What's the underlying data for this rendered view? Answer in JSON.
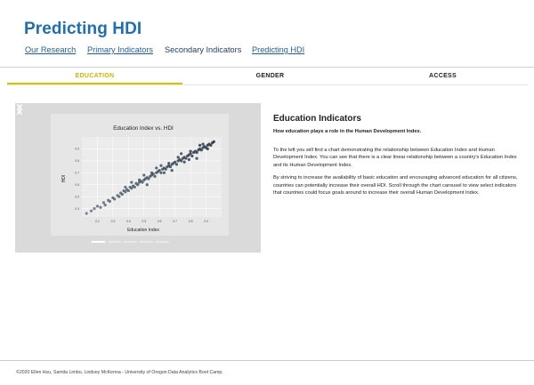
{
  "header": {
    "title": "Predicting HDI"
  },
  "nav": {
    "items": [
      {
        "label": "Our Research"
      },
      {
        "label": "Primary Indicators"
      },
      {
        "label": "Secondary Indicators"
      },
      {
        "label": "Predicting HDI"
      }
    ]
  },
  "tabs": [
    {
      "label": "EDUCATION",
      "active": true
    },
    {
      "label": "GENDER",
      "active": false
    },
    {
      "label": "ACCESS",
      "active": false
    }
  ],
  "carousel": {
    "slide_count": 5,
    "active_slide": 0
  },
  "chart_data": {
    "type": "scatter",
    "title": "Education Index vs. HDI",
    "xlabel": "Education Index",
    "ylabel": "HDI",
    "xlim": [
      0.1,
      1.0
    ],
    "ylim": [
      0.33,
      1.0
    ],
    "xticks": [
      "0.2",
      "0.3",
      "0.4",
      "0.5",
      "0.6",
      "0.7",
      "0.8",
      "0.9"
    ],
    "yticks": [
      "0.4",
      "0.5",
      "0.6",
      "0.7",
      "0.8",
      "0.9"
    ],
    "grid": true,
    "series": [
      {
        "x": [
          0.13,
          0.16,
          0.18,
          0.2,
          0.22,
          0.24,
          0.25,
          0.27,
          0.28,
          0.3,
          0.31,
          0.33,
          0.34,
          0.35,
          0.36,
          0.37,
          0.38,
          0.39,
          0.4,
          0.41,
          0.42,
          0.43,
          0.44,
          0.45,
          0.46,
          0.47,
          0.48,
          0.49,
          0.5,
          0.51,
          0.52,
          0.53,
          0.54,
          0.55,
          0.56,
          0.57,
          0.58,
          0.59,
          0.6,
          0.61,
          0.62,
          0.63,
          0.64,
          0.65,
          0.66,
          0.67,
          0.68,
          0.69,
          0.7,
          0.71,
          0.72,
          0.73,
          0.74,
          0.75,
          0.76,
          0.77,
          0.78,
          0.79,
          0.8,
          0.81,
          0.82,
          0.83,
          0.84,
          0.85,
          0.86,
          0.87,
          0.88,
          0.89,
          0.9,
          0.91,
          0.92,
          0.93,
          0.94,
          0.95,
          0.47,
          0.52,
          0.58,
          0.63,
          0.68,
          0.72,
          0.76,
          0.8,
          0.84,
          0.88,
          0.55,
          0.61,
          0.66,
          0.74,
          0.79,
          0.86,
          0.91,
          0.42,
          0.38,
          0.5
        ],
        "y": [
          0.36,
          0.38,
          0.4,
          0.42,
          0.41,
          0.45,
          0.43,
          0.47,
          0.46,
          0.49,
          0.48,
          0.51,
          0.5,
          0.53,
          0.52,
          0.55,
          0.54,
          0.56,
          0.55,
          0.58,
          0.57,
          0.59,
          0.58,
          0.61,
          0.6,
          0.62,
          0.63,
          0.62,
          0.64,
          0.65,
          0.66,
          0.65,
          0.67,
          0.68,
          0.69,
          0.67,
          0.7,
          0.71,
          0.72,
          0.7,
          0.73,
          0.74,
          0.73,
          0.75,
          0.76,
          0.75,
          0.77,
          0.78,
          0.79,
          0.77,
          0.8,
          0.81,
          0.8,
          0.82,
          0.83,
          0.82,
          0.84,
          0.85,
          0.86,
          0.84,
          0.87,
          0.88,
          0.87,
          0.89,
          0.9,
          0.89,
          0.91,
          0.92,
          0.91,
          0.93,
          0.94,
          0.93,
          0.95,
          0.96,
          0.64,
          0.6,
          0.74,
          0.7,
          0.72,
          0.83,
          0.79,
          0.88,
          0.82,
          0.94,
          0.7,
          0.76,
          0.78,
          0.86,
          0.81,
          0.93,
          0.9,
          0.62,
          0.58,
          0.68
        ]
      }
    ]
  },
  "content": {
    "heading": "Education Indicators",
    "subheading": "How education plays a role in the Human Development Index.",
    "paragraph1": "To the left you will find a chart demonstrating the relationship between Education Index and Human Development Index. You can see that there is a clear linear relationship between a country's Education Index and its Human Development Index.",
    "paragraph2": "By striving to increase the availability of basic education and encouraging advanced education for all citizens, countries can potentially increase their overall HDI. Scroll through the chart carousel to view select indicators that countries could focus goals around to increase their overall Human Development Index."
  },
  "footer": {
    "text": "©2020 Ellen Hsu, Samita Limbu, Lindsey McKenna - University of Oregon Data Analytics Boot Camp."
  }
}
